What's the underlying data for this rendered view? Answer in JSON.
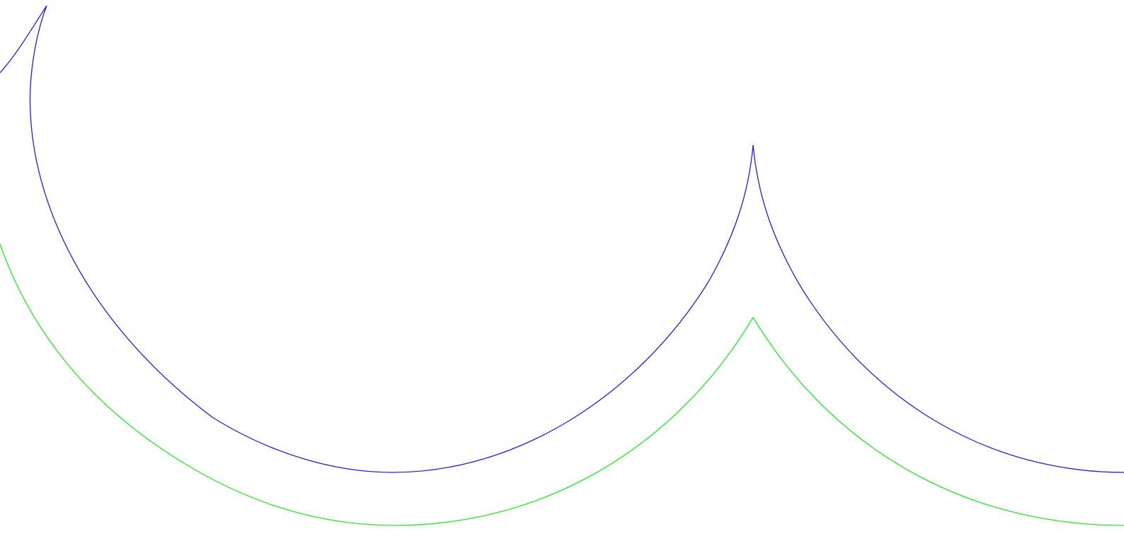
{
  "colors": {
    "background": "#ffffff",
    "curve_inner": "#1f1fe6",
    "curve_outer": "#22ee22"
  },
  "diagram": {
    "description_visible_text": [],
    "curves": [
      {
        "name": "inner-scalloped-curve",
        "color_key": "curve_inner",
        "shape": "two concave arcs meeting at sharp cusps"
      },
      {
        "name": "outer-offset-curve",
        "color_key": "curve_outer",
        "shape": "two concave arcs meeting at a blunt vertex"
      }
    ]
  }
}
